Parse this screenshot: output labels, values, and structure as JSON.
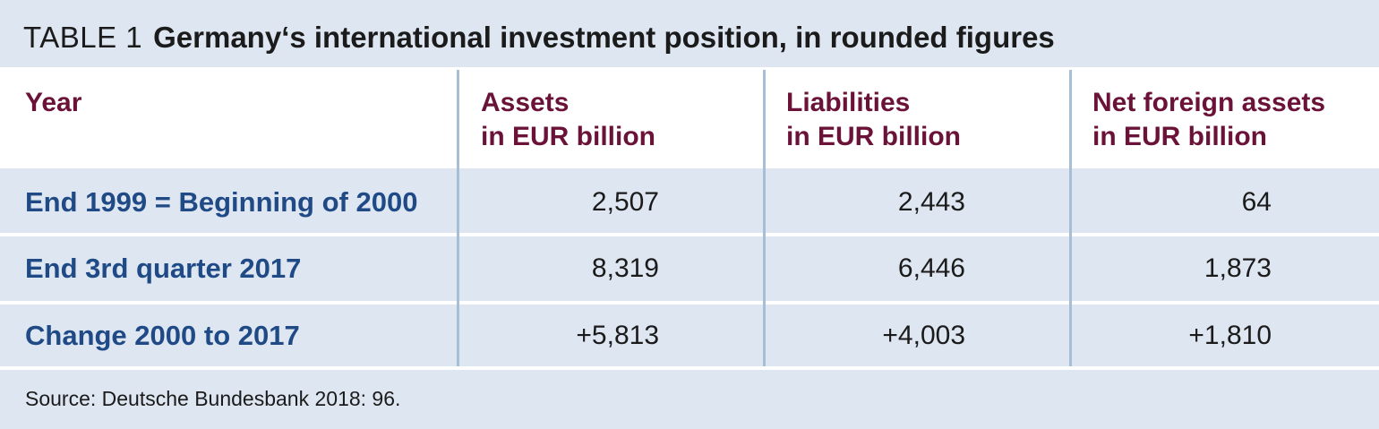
{
  "title": {
    "prefix": "TABLE 1",
    "main": "Germany‘s international investment position, in rounded figures"
  },
  "header": {
    "year": "Year",
    "assets_1": "Assets",
    "assets_2": "in EUR billion",
    "liabilities_1": "Liabilities",
    "liabilities_2": "in EUR billion",
    "net_1": "Net foreign assets",
    "net_2": "in EUR billion"
  },
  "rows": [
    {
      "year": "End 1999 = Beginning of 2000",
      "assets": "2,507",
      "liabilities": "2,443",
      "net": "64"
    },
    {
      "year": "End 3rd quarter 2017",
      "assets": "8,319",
      "liabilities": "6,446",
      "net": "1,873"
    },
    {
      "year": "Change 2000 to 2017",
      "assets": "+5,813",
      "liabilities": "+4,003",
      "net": "+1,810"
    }
  ],
  "source": "Source: Deutsche Bundesbank 2018: 96.",
  "colors": {
    "band_background": "#dde6f1",
    "header_text": "#6b1238",
    "row_label_text": "#1f4a86",
    "divider": "#a7bfd6"
  },
  "chart_data": {
    "type": "table",
    "title": "Germany‘s international investment position, in rounded figures",
    "columns": [
      "Year",
      "Assets in EUR billion",
      "Liabilities in EUR billion",
      "Net foreign assets in EUR billion"
    ],
    "rows": [
      [
        "End 1999 = Beginning of 2000",
        2507,
        2443,
        64
      ],
      [
        "End 3rd quarter 2017",
        8319,
        6446,
        1873
      ],
      [
        "Change 2000 to 2017",
        5813,
        4003,
        1810
      ]
    ]
  }
}
